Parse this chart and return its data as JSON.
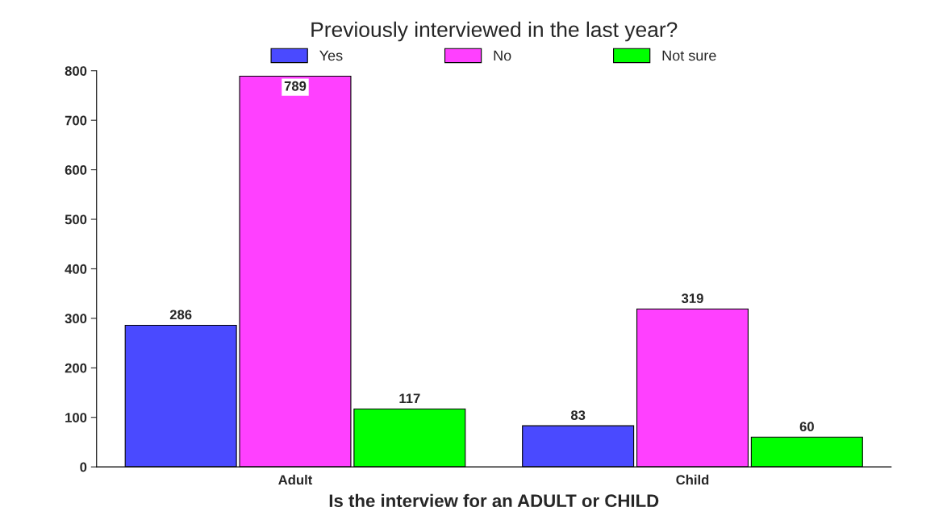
{
  "chart_data": {
    "type": "bar",
    "legend_title": "Previously interviewed in the last year?",
    "xlabel": "Is the interview for an ADULT or CHILD",
    "categories": [
      "Adult",
      "Child"
    ],
    "series": [
      {
        "name": "Yes",
        "color": "#4a4aff",
        "values": [
          286,
          83
        ]
      },
      {
        "name": "No",
        "color": "#ff40ff",
        "values": [
          789,
          319
        ]
      },
      {
        "name": "Not sure",
        "color": "#00ff00",
        "values": [
          117,
          60
        ]
      }
    ],
    "ylim": [
      0,
      800
    ],
    "yticks": [
      0,
      100,
      200,
      300,
      400,
      500,
      600,
      700,
      800
    ],
    "grid": false,
    "legend": "top",
    "data_labels": true
  }
}
